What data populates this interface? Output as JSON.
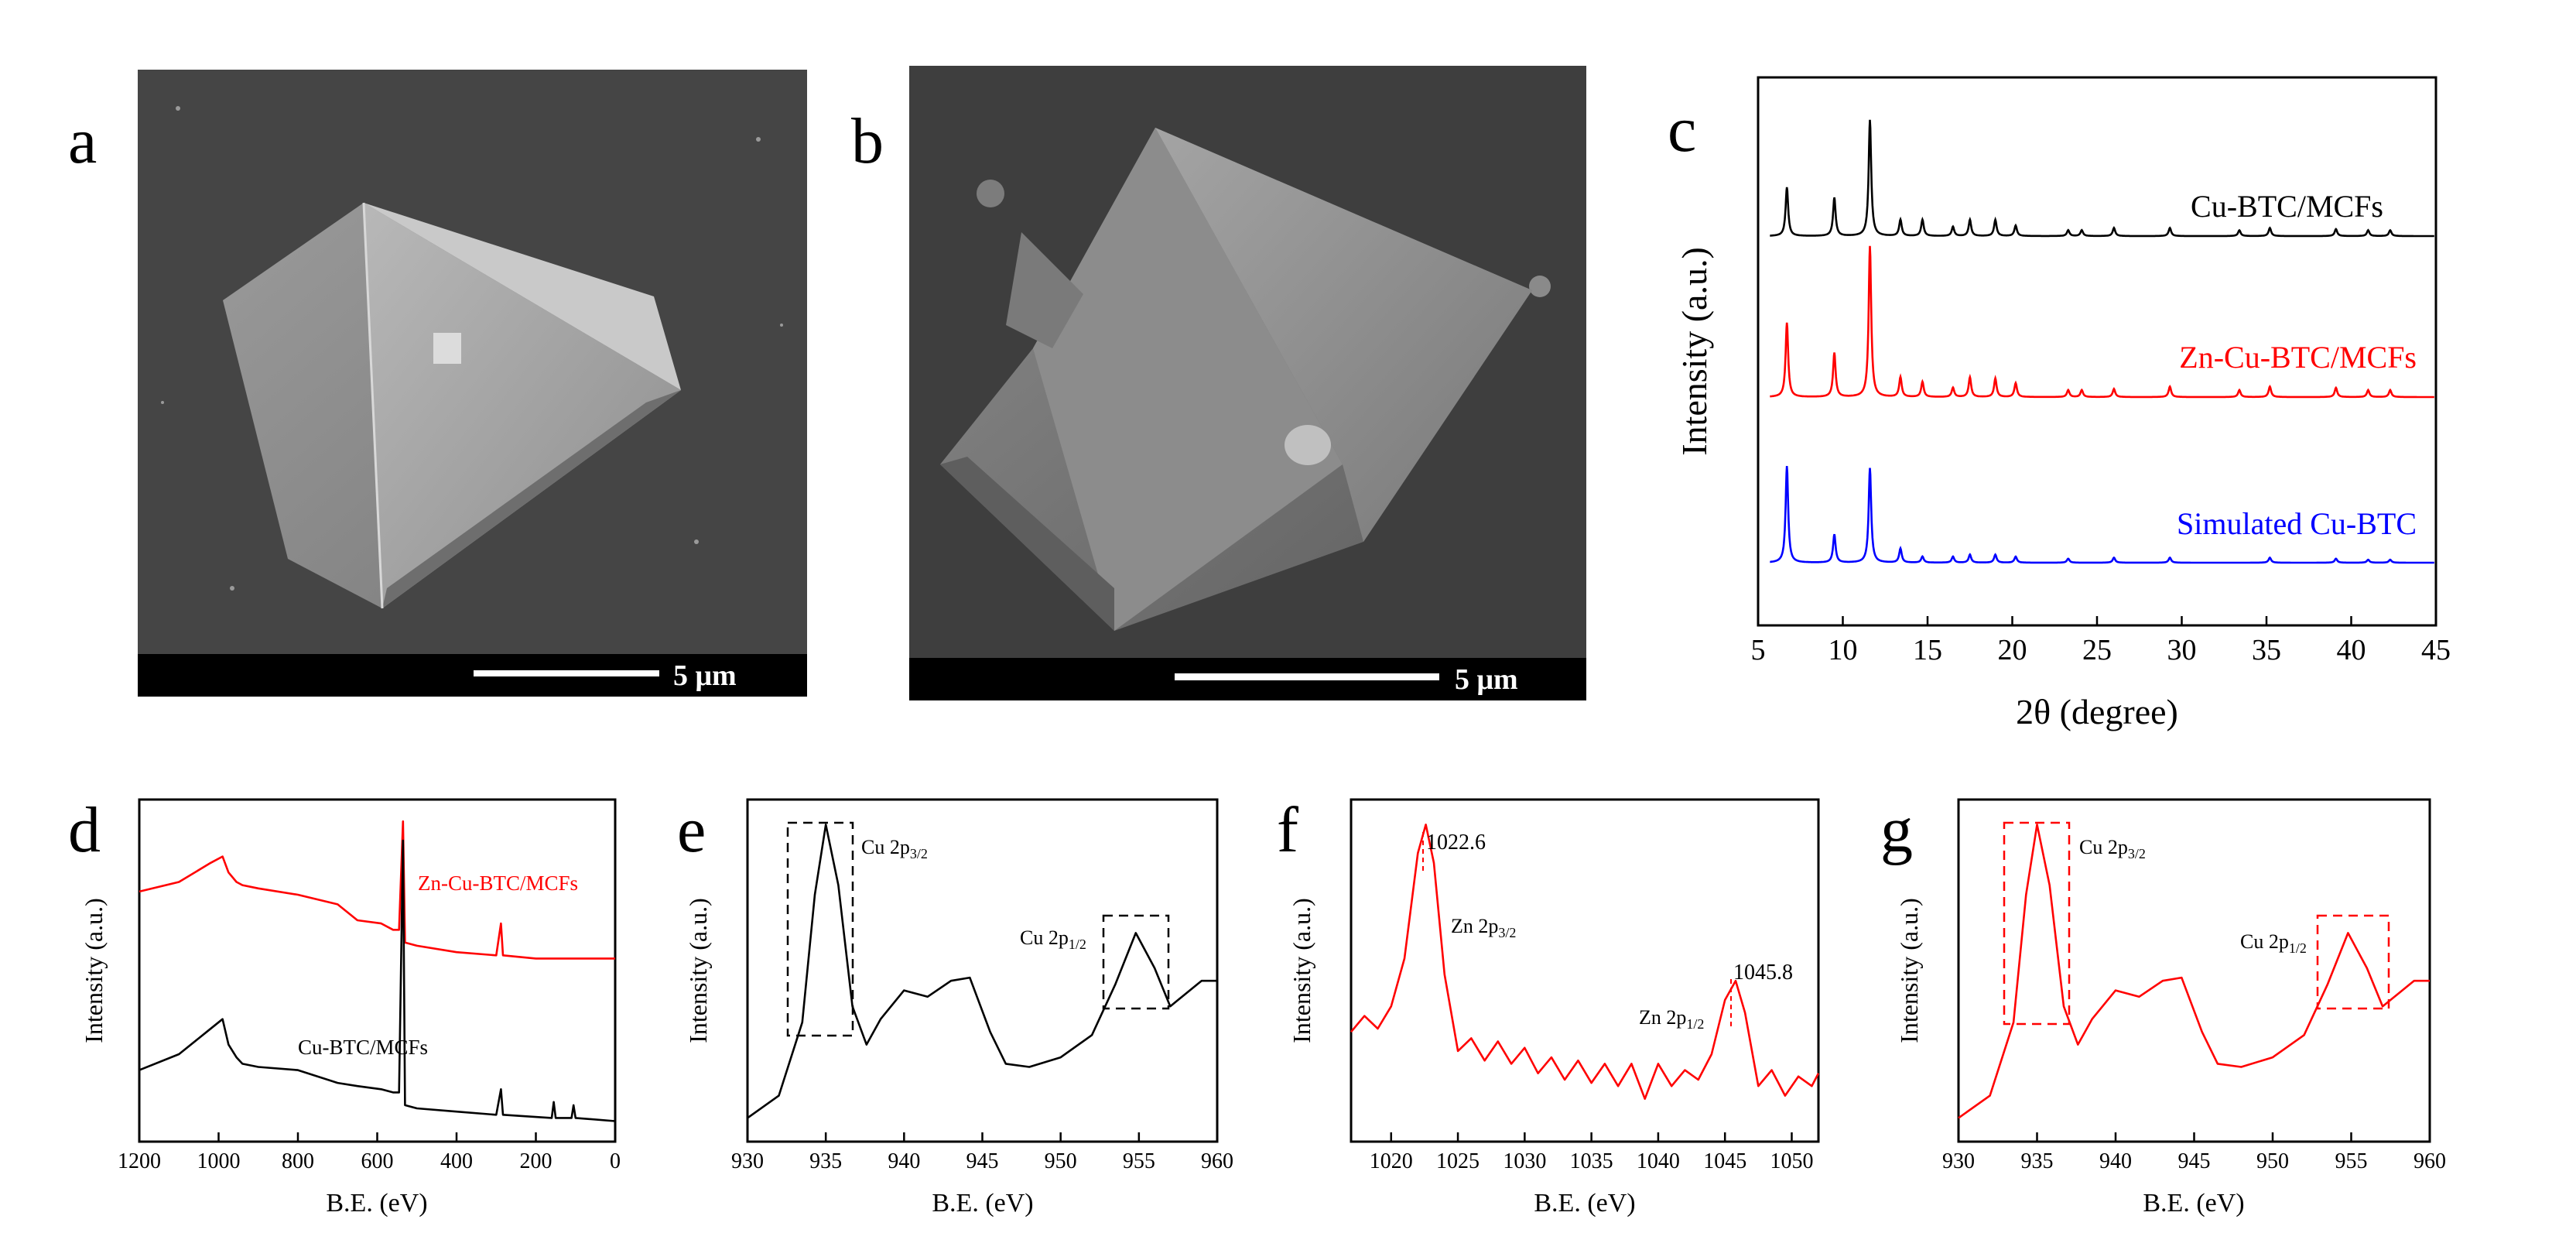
{
  "panels": {
    "a": {
      "letter": "a",
      "scale": "5 μm"
    },
    "b": {
      "letter": "b",
      "scale": "5 μm"
    },
    "c": {
      "letter": "c"
    },
    "d": {
      "letter": "d"
    },
    "e": {
      "letter": "e"
    },
    "f": {
      "letter": "f"
    },
    "g": {
      "letter": "g"
    }
  },
  "chart_data": [
    {
      "panel": "c",
      "type": "line",
      "xlabel": "2θ (degree)",
      "ylabel": "Intensity (a.u.)",
      "xlim": [
        5,
        45
      ],
      "xticks": [
        5,
        10,
        15,
        20,
        25,
        30,
        35,
        40,
        45
      ],
      "series": [
        {
          "name": "Cu-BTC/MCFs",
          "color": "#000000",
          "peaks": [
            [
              6.7,
              0.42
            ],
            [
              9.5,
              0.33
            ],
            [
              11.6,
              1.0
            ],
            [
              13.4,
              0.14
            ],
            [
              14.7,
              0.14
            ],
            [
              16.5,
              0.08
            ],
            [
              17.5,
              0.14
            ],
            [
              19.0,
              0.14
            ],
            [
              20.2,
              0.09
            ],
            [
              23.3,
              0.05
            ],
            [
              24.1,
              0.05
            ],
            [
              26.0,
              0.07
            ],
            [
              29.3,
              0.07
            ],
            [
              33.4,
              0.05
            ],
            [
              35.2,
              0.07
            ],
            [
              39.1,
              0.06
            ],
            [
              41.0,
              0.05
            ],
            [
              42.3,
              0.05
            ]
          ]
        },
        {
          "name": "Zn-Cu-BTC/MCFs",
          "color": "#ff0000",
          "peaks": [
            [
              6.7,
              0.64
            ],
            [
              9.5,
              0.38
            ],
            [
              11.6,
              1.3
            ],
            [
              13.4,
              0.17
            ],
            [
              14.7,
              0.13
            ],
            [
              16.5,
              0.08
            ],
            [
              17.5,
              0.17
            ],
            [
              19.0,
              0.16
            ],
            [
              20.2,
              0.12
            ],
            [
              23.3,
              0.06
            ],
            [
              24.1,
              0.06
            ],
            [
              26.0,
              0.07
            ],
            [
              29.3,
              0.09
            ],
            [
              33.4,
              0.06
            ],
            [
              35.2,
              0.09
            ],
            [
              39.1,
              0.08
            ],
            [
              41.0,
              0.06
            ],
            [
              42.3,
              0.06
            ]
          ]
        },
        {
          "name": "Simulated Cu-BTC",
          "color": "#0000ff",
          "peaks": [
            [
              6.7,
              0.96
            ],
            [
              9.5,
              0.28
            ],
            [
              11.6,
              0.94
            ],
            [
              13.4,
              0.14
            ],
            [
              14.7,
              0.06
            ],
            [
              16.5,
              0.06
            ],
            [
              17.5,
              0.08
            ],
            [
              19.0,
              0.08
            ],
            [
              20.2,
              0.06
            ],
            [
              23.3,
              0.04
            ],
            [
              26.0,
              0.05
            ],
            [
              29.3,
              0.05
            ],
            [
              35.2,
              0.05
            ],
            [
              39.1,
              0.04
            ],
            [
              41.0,
              0.03
            ],
            [
              42.3,
              0.03
            ]
          ]
        }
      ]
    },
    {
      "panel": "d",
      "type": "line",
      "xlabel": "B.E. (eV)",
      "ylabel": "Intensity (a.u.)",
      "xlim": [
        1200,
        0
      ],
      "xticks": [
        1200,
        1000,
        800,
        600,
        400,
        200,
        0
      ],
      "series": [
        {
          "name": "Zn-Cu-BTC/MCFs",
          "color": "#ff0000",
          "points": [
            [
              1200,
              0.76
            ],
            [
              1100,
              0.79
            ],
            [
              1020,
              0.85
            ],
            [
              990,
              0.87
            ],
            [
              975,
              0.82
            ],
            [
              955,
              0.79
            ],
            [
              940,
              0.78
            ],
            [
              900,
              0.77
            ],
            [
              800,
              0.75
            ],
            [
              700,
              0.72
            ],
            [
              650,
              0.67
            ],
            [
              590,
              0.66
            ],
            [
              560,
              0.64
            ],
            [
              545,
              0.64
            ],
            [
              535,
              0.98
            ],
            [
              530,
              0.6
            ],
            [
              500,
              0.59
            ],
            [
              400,
              0.57
            ],
            [
              300,
              0.56
            ],
            [
              288,
              0.66
            ],
            [
              283,
              0.56
            ],
            [
              200,
              0.55
            ],
            [
              100,
              0.55
            ],
            [
              0,
              0.55
            ]
          ]
        },
        {
          "name": "Cu-BTC/MCFs",
          "color": "#000000",
          "points": [
            [
              1200,
              0.2
            ],
            [
              1100,
              0.25
            ],
            [
              1030,
              0.32
            ],
            [
              990,
              0.36
            ],
            [
              975,
              0.28
            ],
            [
              955,
              0.24
            ],
            [
              940,
              0.22
            ],
            [
              900,
              0.21
            ],
            [
              800,
              0.2
            ],
            [
              700,
              0.16
            ],
            [
              650,
              0.15
            ],
            [
              590,
              0.14
            ],
            [
              560,
              0.13
            ],
            [
              545,
              0.13
            ],
            [
              535,
              0.92
            ],
            [
              530,
              0.09
            ],
            [
              500,
              0.08
            ],
            [
              400,
              0.07
            ],
            [
              300,
              0.06
            ],
            [
              288,
              0.14
            ],
            [
              283,
              0.06
            ],
            [
              160,
              0.05
            ],
            [
              155,
              0.1
            ],
            [
              150,
              0.05
            ],
            [
              110,
              0.05
            ],
            [
              105,
              0.09
            ],
            [
              100,
              0.05
            ],
            [
              0,
              0.04
            ]
          ]
        }
      ]
    },
    {
      "panel": "e",
      "type": "line",
      "xlabel": "B.E. (eV)",
      "ylabel": "Intensity (a.u.)",
      "xlim": [
        930,
        960
      ],
      "xticks": [
        930,
        935,
        940,
        945,
        950,
        955,
        960
      ],
      "annotations": [
        "Cu 2p3/2",
        "Cu 2p1/2"
      ],
      "series": [
        {
          "name": "",
          "color": "#000000",
          "points": [
            [
              930,
              0.05
            ],
            [
              932,
              0.12
            ],
            [
              933.5,
              0.35
            ],
            [
              934.3,
              0.75
            ],
            [
              935,
              0.97
            ],
            [
              935.8,
              0.78
            ],
            [
              936.7,
              0.4
            ],
            [
              937.6,
              0.28
            ],
            [
              938.5,
              0.36
            ],
            [
              940,
              0.45
            ],
            [
              941.5,
              0.43
            ],
            [
              943,
              0.48
            ],
            [
              944.2,
              0.49
            ],
            [
              945.5,
              0.32
            ],
            [
              946.5,
              0.22
            ],
            [
              948,
              0.21
            ],
            [
              950,
              0.24
            ],
            [
              952,
              0.31
            ],
            [
              953.5,
              0.47
            ],
            [
              954.8,
              0.63
            ],
            [
              956,
              0.52
            ],
            [
              957,
              0.4
            ],
            [
              958,
              0.44
            ],
            [
              959,
              0.48
            ],
            [
              960,
              0.48
            ]
          ]
        }
      ]
    },
    {
      "panel": "f",
      "type": "line",
      "xlabel": "B.E. (eV)",
      "ylabel": "Intensity (a.u.)",
      "xlim": [
        1017,
        1052
      ],
      "xticks": [
        1020,
        1025,
        1030,
        1035,
        1040,
        1045,
        1050
      ],
      "annotations": [
        "1022.6",
        "Zn 2p3/2",
        "1045.8",
        "Zn 2p1/2"
      ],
      "series": [
        {
          "name": "",
          "color": "#ff0000",
          "points": [
            [
              1017,
              0.32
            ],
            [
              1018,
              0.37
            ],
            [
              1019,
              0.33
            ],
            [
              1020,
              0.4
            ],
            [
              1021,
              0.55
            ],
            [
              1022,
              0.88
            ],
            [
              1022.6,
              0.97
            ],
            [
              1023.2,
              0.85
            ],
            [
              1024,
              0.5
            ],
            [
              1025,
              0.26
            ],
            [
              1026,
              0.3
            ],
            [
              1027,
              0.23
            ],
            [
              1028,
              0.29
            ],
            [
              1029,
              0.22
            ],
            [
              1030,
              0.27
            ],
            [
              1031,
              0.19
            ],
            [
              1032,
              0.24
            ],
            [
              1033,
              0.17
            ],
            [
              1034,
              0.23
            ],
            [
              1035,
              0.16
            ],
            [
              1036,
              0.22
            ],
            [
              1037,
              0.15
            ],
            [
              1038,
              0.22
            ],
            [
              1039,
              0.11
            ],
            [
              1040,
              0.22
            ],
            [
              1041,
              0.15
            ],
            [
              1042,
              0.2
            ],
            [
              1043,
              0.17
            ],
            [
              1044,
              0.25
            ],
            [
              1045,
              0.42
            ],
            [
              1045.8,
              0.48
            ],
            [
              1046.5,
              0.38
            ],
            [
              1047.5,
              0.15
            ],
            [
              1048.5,
              0.2
            ],
            [
              1049.5,
              0.12
            ],
            [
              1050.5,
              0.18
            ],
            [
              1051.5,
              0.15
            ],
            [
              1052,
              0.19
            ]
          ]
        }
      ]
    },
    {
      "panel": "g",
      "type": "line",
      "xlabel": "B.E. (eV)",
      "ylabel": "Intensity (a.u.)",
      "xlim": [
        930,
        960
      ],
      "xticks": [
        930,
        935,
        940,
        945,
        950,
        955,
        960
      ],
      "annotations": [
        "Cu 2p3/2",
        "Cu 2p1/2"
      ],
      "series": [
        {
          "name": "",
          "color": "#ff0000",
          "points": [
            [
              930,
              0.05
            ],
            [
              932,
              0.12
            ],
            [
              933.5,
              0.35
            ],
            [
              934.3,
              0.75
            ],
            [
              935,
              0.97
            ],
            [
              935.8,
              0.78
            ],
            [
              936.7,
              0.4
            ],
            [
              937.6,
              0.28
            ],
            [
              938.5,
              0.36
            ],
            [
              940,
              0.45
            ],
            [
              941.5,
              0.43
            ],
            [
              943,
              0.48
            ],
            [
              944.2,
              0.49
            ],
            [
              945.5,
              0.32
            ],
            [
              946.5,
              0.22
            ],
            [
              948,
              0.21
            ],
            [
              950,
              0.24
            ],
            [
              952,
              0.31
            ],
            [
              953.5,
              0.47
            ],
            [
              954.8,
              0.63
            ],
            [
              956,
              0.52
            ],
            [
              957,
              0.4
            ],
            [
              958,
              0.44
            ],
            [
              959,
              0.48
            ],
            [
              960,
              0.48
            ]
          ]
        }
      ]
    }
  ]
}
